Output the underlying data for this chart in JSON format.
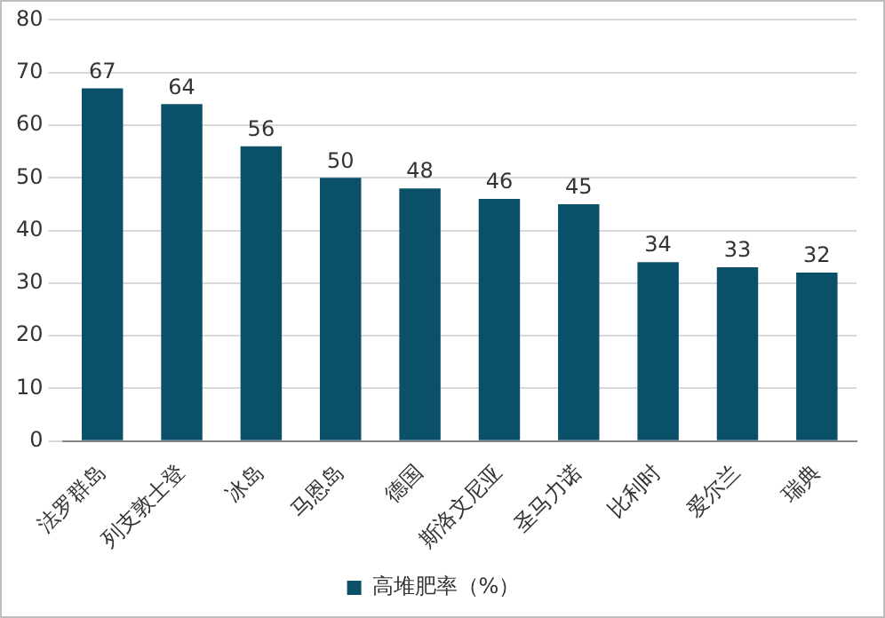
{
  "chart_data": {
    "type": "bar",
    "categories": [
      "法罗群岛",
      "列支敦士登",
      "冰岛",
      "马恩岛",
      "德国",
      "斯洛文尼亚",
      "圣马力诺",
      "比利时",
      "爱尔兰",
      "瑞典"
    ],
    "series": [
      {
        "name": "高堆肥率（%）",
        "color": "#0b5069",
        "values": [
          67,
          64,
          56,
          50,
          48,
          46,
          45,
          34,
          33,
          32
        ]
      }
    ],
    "ylim": [
      0,
      80
    ],
    "yticks": [
      0,
      10,
      20,
      30,
      40,
      50,
      60,
      70,
      80
    ],
    "grid": "y",
    "legend": "bottom",
    "data_labels": true
  }
}
